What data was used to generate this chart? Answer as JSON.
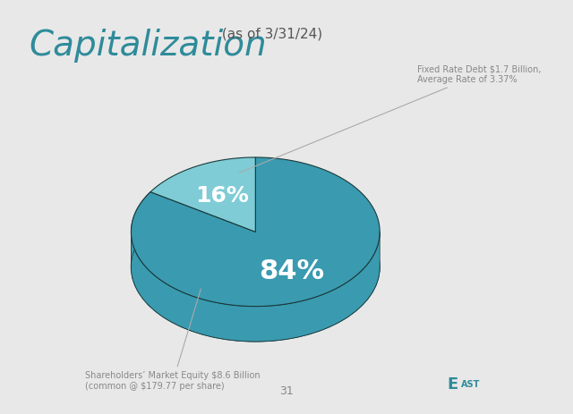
{
  "title": "Capitalization",
  "subtitle": " (as of 3/31/24)",
  "slices": [
    84,
    16
  ],
  "slice_colors": [
    "#3a9ab0",
    "#7fccd6"
  ],
  "slice_edge_color": "#1a3a3a",
  "labels_inside": [
    "84%",
    "16%"
  ],
  "label_colors": [
    "white",
    "white"
  ],
  "annotation_debt": "Fixed Rate Debt $1.7 Billion,\nAverage Rate of 3.37%",
  "annotation_equity": "Shareholders’ Market Equity $8.6 Billion\n(common @ $179.77 per share)",
  "annotation_color": "#888888",
  "title_color": "#2e8b9a",
  "subtitle_color": "#555555",
  "background_color": "#e8e8e8",
  "page_number": "31",
  "shadow_color": "#1d4d4d",
  "startangle": 90,
  "explode_16": 0.05
}
